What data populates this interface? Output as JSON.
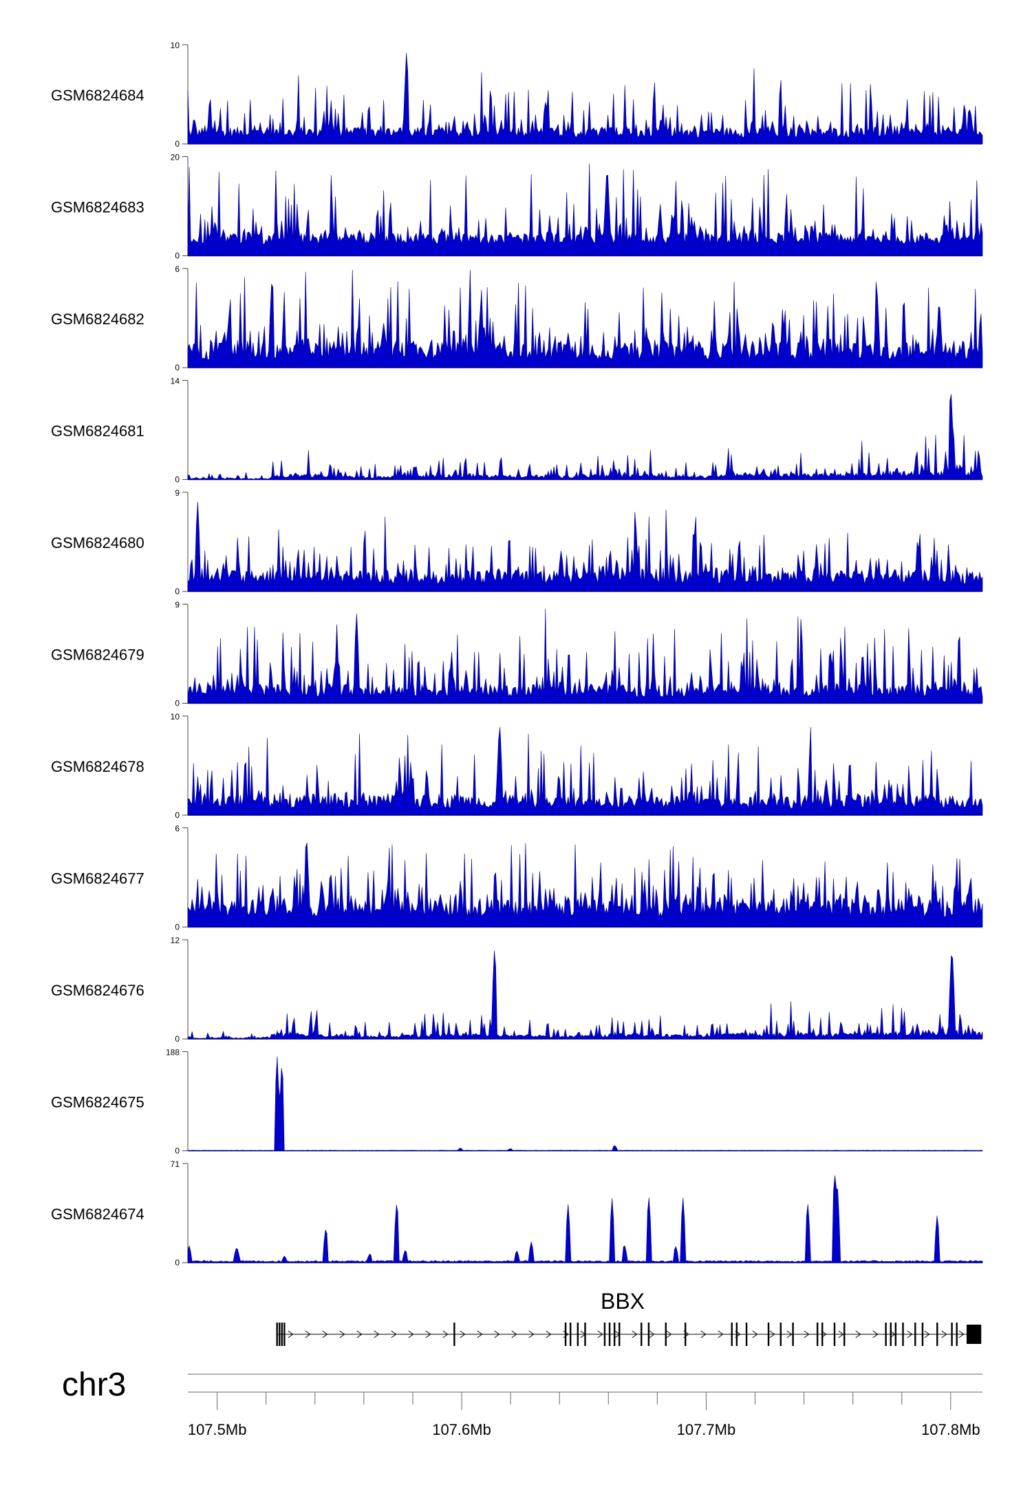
{
  "chart_data": {
    "type": "area",
    "chromosome": "chr3",
    "x_unit": "Mb",
    "xlim": [
      107.488,
      107.813
    ],
    "x_ticks": [
      {
        "value": 107.5,
        "label": "107.5Mb"
      },
      {
        "value": 107.6,
        "label": "107.6Mb"
      },
      {
        "value": 107.7,
        "label": "107.7Mb"
      },
      {
        "value": 107.8,
        "label": "107.8Mb"
      }
    ],
    "minor_ticks": [
      107.52,
      107.54,
      107.56,
      107.58,
      107.62,
      107.64,
      107.66,
      107.68,
      107.72,
      107.74,
      107.76,
      107.78
    ],
    "color": "#0000cc",
    "tracks": [
      {
        "name": "GSM6824684",
        "ymax": "10",
        "ymin": "0",
        "max": 10,
        "profile": "uniform",
        "base": 0.12,
        "noise": 0.45,
        "spike": 0.1,
        "peaks": [
          [
            107.5775,
            1.0
          ]
        ]
      },
      {
        "name": "GSM6824683",
        "ymax": "20",
        "ymin": "0",
        "max": 20,
        "profile": "uniform",
        "base": 0.18,
        "noise": 0.35,
        "spike": 0.12,
        "peaks": [
          [
            107.6595,
            0.98
          ]
        ]
      },
      {
        "name": "GSM6824682",
        "ymax": "6",
        "ymin": "0",
        "max": 6,
        "profile": "uniform",
        "base": 0.18,
        "noise": 0.55,
        "spike": 0.14,
        "peaks": [
          [
            107.5225,
            1.0
          ]
        ]
      },
      {
        "name": "GSM6824681",
        "ymax": "14",
        "ymin": "0",
        "max": 14,
        "profile": "rising",
        "base": 0.08,
        "noise": 0.5,
        "spike": 0.1,
        "peaks": [
          [
            107.8,
            1.0
          ]
        ]
      },
      {
        "name": "GSM6824680",
        "ymax": "9",
        "ymin": "0",
        "max": 9,
        "profile": "uniform",
        "base": 0.15,
        "noise": 0.5,
        "spike": 0.12,
        "peaks": [
          [
            107.492,
            0.95
          ]
        ]
      },
      {
        "name": "GSM6824679",
        "ymax": "9",
        "ymin": "0",
        "max": 9,
        "profile": "uniform",
        "base": 0.13,
        "noise": 0.5,
        "spike": 0.12,
        "peaks": [
          [
            107.557,
            0.95
          ]
        ]
      },
      {
        "name": "GSM6824678",
        "ymax": "10",
        "ymin": "0",
        "max": 10,
        "profile": "uniform",
        "base": 0.14,
        "noise": 0.5,
        "spike": 0.12,
        "peaks": [
          [
            107.6155,
            1.0
          ]
        ]
      },
      {
        "name": "GSM6824677",
        "ymax": "6",
        "ymin": "0",
        "max": 6,
        "profile": "uniform",
        "base": 0.2,
        "noise": 0.5,
        "spike": 0.12,
        "peaks": [
          [
            107.5365,
            1.0
          ]
        ]
      },
      {
        "name": "GSM6824676",
        "ymax": "12",
        "ymin": "0",
        "max": 12,
        "profile": "rising",
        "base": 0.08,
        "noise": 0.5,
        "spike": 0.1,
        "peaks": [
          [
            107.8005,
            1.0
          ],
          [
            107.6135,
            0.98
          ]
        ]
      },
      {
        "name": "GSM6824675",
        "ymax": "188",
        "ymin": "0",
        "max": 188,
        "profile": "flat",
        "base": 0.004,
        "noise": 0.5,
        "spike": 0.0,
        "peaks": [
          [
            107.5245,
            1.0
          ],
          [
            107.5265,
            0.95
          ],
          [
            107.6625,
            0.06
          ],
          [
            107.5995,
            0.03
          ],
          [
            107.62,
            0.025
          ]
        ]
      },
      {
        "name": "GSM6824674",
        "ymax": "71",
        "ymin": "0",
        "max": 71,
        "profile": "flat",
        "base": 0.015,
        "noise": 0.5,
        "spike": 0.0,
        "peaks": [
          [
            107.4885,
            0.18
          ],
          [
            107.508,
            0.17
          ],
          [
            107.5275,
            0.07
          ],
          [
            107.5445,
            0.38
          ],
          [
            107.5625,
            0.1
          ],
          [
            107.5735,
            0.66
          ],
          [
            107.577,
            0.14
          ],
          [
            107.6225,
            0.13
          ],
          [
            107.6285,
            0.22
          ],
          [
            107.6435,
            0.61
          ],
          [
            107.6615,
            0.67
          ],
          [
            107.6665,
            0.2
          ],
          [
            107.6765,
            0.71
          ],
          [
            107.6875,
            0.18
          ],
          [
            107.6905,
            0.68
          ],
          [
            107.7415,
            0.64
          ],
          [
            107.7525,
            0.97
          ],
          [
            107.7535,
            0.9
          ],
          [
            107.7945,
            0.5
          ]
        ]
      }
    ],
    "gene": {
      "name": "BBX",
      "start": 107.5245,
      "end": 107.8125,
      "strand": "+",
      "exons": [
        107.5245,
        107.5255,
        107.5265,
        107.5275,
        107.597,
        107.6425,
        107.6445,
        107.6475,
        107.6505,
        107.6585,
        107.6605,
        107.6625,
        107.6645,
        107.6735,
        107.6765,
        107.6835,
        107.6915,
        107.7105,
        107.7125,
        107.7165,
        107.7255,
        107.7305,
        107.7355,
        107.7455,
        107.7475,
        107.7525,
        107.7565,
        107.7735,
        107.7755,
        107.7775,
        107.7805,
        107.7855,
        107.7885,
        107.7945,
        107.8005,
        107.8025
      ],
      "terminal_exon": [
        107.8065,
        107.8125
      ]
    }
  }
}
